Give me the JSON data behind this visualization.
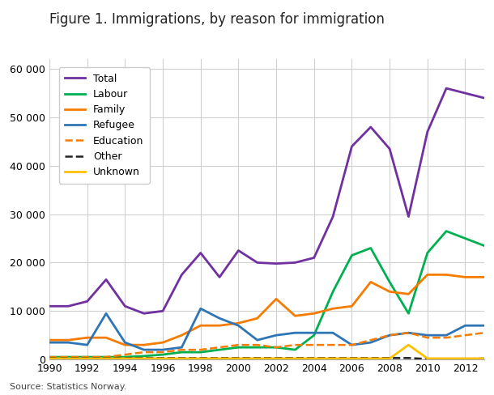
{
  "title": "Figure 1. Immigrations, by reason for immigration",
  "source": "Source: Statistics Norway.",
  "years": [
    1990,
    1991,
    1992,
    1993,
    1994,
    1995,
    1996,
    1997,
    1998,
    1999,
    2000,
    2001,
    2002,
    2003,
    2004,
    2005,
    2006,
    2007,
    2008,
    2009,
    2010,
    2011,
    2012,
    2013
  ],
  "series": {
    "Total": {
      "values": [
        11000,
        11000,
        12000,
        16500,
        11000,
        9500,
        10000,
        17500,
        22000,
        17000,
        22500,
        20000,
        19800,
        20000,
        21000,
        29500,
        44000,
        48000,
        43500,
        29500,
        47000,
        56000,
        55000,
        54000
      ],
      "color": "#7030a0",
      "linestyle": "solid",
      "linewidth": 2.0
    },
    "Labour": {
      "values": [
        500,
        500,
        500,
        500,
        500,
        700,
        1000,
        1500,
        1500,
        2000,
        2500,
        2500,
        2500,
        2000,
        5000,
        14000,
        21500,
        23000,
        16000,
        9500,
        22000,
        26500,
        25000,
        23500
      ],
      "color": "#00b050",
      "linestyle": "solid",
      "linewidth": 2.0
    },
    "Family": {
      "values": [
        4000,
        4000,
        4500,
        4500,
        3000,
        3000,
        3500,
        5000,
        7000,
        7000,
        7500,
        8500,
        12500,
        9000,
        9500,
        10500,
        11000,
        16000,
        14000,
        13500,
        17500,
        17500,
        17000,
        17000
      ],
      "color": "#f57c00",
      "linestyle": "solid",
      "linewidth": 2.0
    },
    "Refugee": {
      "values": [
        3500,
        3500,
        3000,
        9500,
        3500,
        2000,
        2000,
        2500,
        10500,
        8500,
        7000,
        4000,
        5000,
        5500,
        5500,
        5500,
        3000,
        3500,
        5000,
        5500,
        5000,
        5000,
        7000,
        7000
      ],
      "color": "#2e75b6",
      "linestyle": "solid",
      "linewidth": 2.0
    },
    "Education": {
      "values": [
        500,
        500,
        500,
        500,
        1000,
        1500,
        1500,
        2000,
        2000,
        2500,
        3000,
        3000,
        2500,
        3000,
        3000,
        3000,
        3000,
        4000,
        5000,
        5500,
        4500,
        4500,
        5000,
        5500
      ],
      "color": "#f57c00",
      "linestyle": "dashed",
      "linewidth": 1.8
    },
    "Other": {
      "values": [
        300,
        300,
        300,
        300,
        300,
        300,
        300,
        300,
        300,
        300,
        300,
        300,
        300,
        300,
        300,
        300,
        300,
        300,
        300,
        300,
        100,
        100,
        100,
        200
      ],
      "color": "#222222",
      "linestyle": "dashed",
      "linewidth": 1.8
    },
    "Unknown": {
      "values": [
        200,
        200,
        200,
        200,
        200,
        200,
        200,
        200,
        200,
        200,
        200,
        200,
        200,
        200,
        200,
        200,
        200,
        200,
        200,
        3000,
        200,
        200,
        200,
        200
      ],
      "color": "#ffc000",
      "linestyle": "solid",
      "linewidth": 2.0
    }
  },
  "ylim": [
    0,
    62000
  ],
  "yticks": [
    0,
    10000,
    20000,
    30000,
    40000,
    50000,
    60000
  ],
  "ytick_labels": [
    "0",
    "10 000",
    "20 000",
    "30 000",
    "40 000",
    "50 000",
    "60 000"
  ],
  "xticks": [
    1990,
    1992,
    1994,
    1996,
    1998,
    2000,
    2002,
    2004,
    2006,
    2008,
    2010,
    2012
  ],
  "background_color": "#ffffff",
  "grid_color": "#d0d0d0",
  "title_fontsize": 12,
  "legend_order": [
    "Total",
    "Labour",
    "Family",
    "Refugee",
    "Education",
    "Other",
    "Unknown"
  ]
}
